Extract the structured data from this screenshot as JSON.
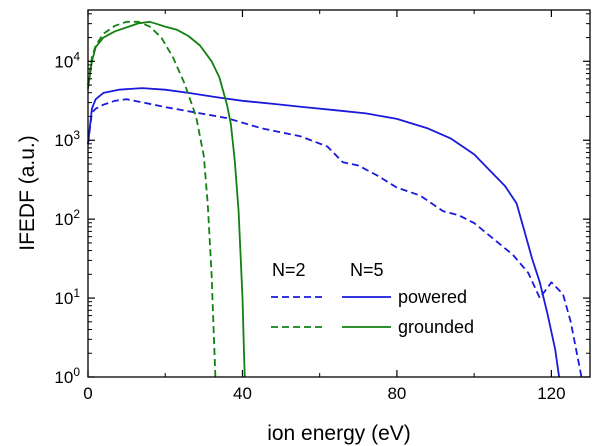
{
  "chart_data": {
    "type": "line",
    "xlabel": "ion energy (eV)",
    "ylabel": "IFEDF (a.u.)",
    "xlim": [
      0,
      130
    ],
    "ylim_exponents": [
      0,
      4.65
    ],
    "y_scale": "log",
    "grid": false,
    "x_ticks": [
      0,
      40,
      80,
      120
    ],
    "x_tick_labels": [
      "0",
      "40",
      "80",
      "120"
    ],
    "y_ticks": [
      {
        "exp": 0,
        "base": "10",
        "sup": "0"
      },
      {
        "exp": 1,
        "base": "10",
        "sup": "1"
      },
      {
        "exp": 2,
        "base": "10",
        "sup": "2"
      },
      {
        "exp": 3,
        "base": "10",
        "sup": "3"
      },
      {
        "exp": 4,
        "base": "10",
        "sup": "4"
      }
    ],
    "legend": {
      "position": "bottom-right",
      "col_headers": [
        "N=2",
        "N=5"
      ],
      "rows": [
        "powered",
        "grounded"
      ]
    },
    "colors": {
      "powered": "#1a1adc",
      "grounded": "#128012"
    },
    "series": [
      {
        "key": "powered-N2",
        "N": 2,
        "electrode": "powered",
        "style": "dashed",
        "points": [
          [
            0,
            2.95
          ],
          [
            1,
            3.35
          ],
          [
            2,
            3.4
          ],
          [
            4,
            3.45
          ],
          [
            7,
            3.5
          ],
          [
            10,
            3.52
          ],
          [
            14,
            3.48
          ],
          [
            20,
            3.42
          ],
          [
            28,
            3.35
          ],
          [
            36,
            3.28
          ],
          [
            45,
            3.15
          ],
          [
            55,
            3.05
          ],
          [
            62,
            2.92
          ],
          [
            66,
            2.72
          ],
          [
            70,
            2.68
          ],
          [
            75,
            2.55
          ],
          [
            80,
            2.4
          ],
          [
            86,
            2.3
          ],
          [
            92,
            2.1
          ],
          [
            96,
            2.05
          ],
          [
            100,
            1.95
          ],
          [
            105,
            1.75
          ],
          [
            110,
            1.55
          ],
          [
            114,
            1.32
          ],
          [
            117,
            1.0
          ],
          [
            120,
            1.2
          ],
          [
            123,
            1.05
          ],
          [
            125,
            0.7
          ],
          [
            127,
            0.2
          ],
          [
            127.8,
            0
          ]
        ]
      },
      {
        "key": "powered-N5",
        "N": 5,
        "electrode": "powered",
        "style": "solid",
        "points": [
          [
            0,
            2.95
          ],
          [
            1,
            3.4
          ],
          [
            2,
            3.52
          ],
          [
            4,
            3.6
          ],
          [
            8,
            3.64
          ],
          [
            14,
            3.66
          ],
          [
            20,
            3.64
          ],
          [
            26,
            3.6
          ],
          [
            34,
            3.54
          ],
          [
            40,
            3.5
          ],
          [
            48,
            3.46
          ],
          [
            56,
            3.42
          ],
          [
            64,
            3.38
          ],
          [
            72,
            3.34
          ],
          [
            80,
            3.27
          ],
          [
            88,
            3.15
          ],
          [
            94,
            3.02
          ],
          [
            100,
            2.82
          ],
          [
            104,
            2.62
          ],
          [
            108,
            2.42
          ],
          [
            111,
            2.2
          ],
          [
            113,
            1.85
          ],
          [
            115,
            1.5
          ],
          [
            117,
            1.2
          ],
          [
            119,
            0.8
          ],
          [
            121,
            0.35
          ],
          [
            122,
            0
          ]
        ]
      },
      {
        "key": "grounded-N2",
        "N": 2,
        "electrode": "grounded",
        "style": "dashed",
        "points": [
          [
            0,
            3.7
          ],
          [
            1,
            4.05
          ],
          [
            2,
            4.2
          ],
          [
            4,
            4.35
          ],
          [
            7,
            4.45
          ],
          [
            10,
            4.5
          ],
          [
            13,
            4.5
          ],
          [
            16,
            4.44
          ],
          [
            19,
            4.3
          ],
          [
            22,
            4.05
          ],
          [
            25,
            3.72
          ],
          [
            28,
            3.3
          ],
          [
            30,
            2.8
          ],
          [
            31,
            2.2
          ],
          [
            32,
            1.3
          ],
          [
            32.6,
            0.5
          ],
          [
            33,
            0
          ]
        ]
      },
      {
        "key": "grounded-N5",
        "N": 5,
        "electrode": "grounded",
        "style": "solid",
        "points": [
          [
            0,
            3.65
          ],
          [
            1,
            4.0
          ],
          [
            2,
            4.18
          ],
          [
            4,
            4.3
          ],
          [
            7,
            4.38
          ],
          [
            10,
            4.43
          ],
          [
            13,
            4.48
          ],
          [
            16,
            4.5
          ],
          [
            18,
            4.47
          ],
          [
            20,
            4.44
          ],
          [
            23,
            4.4
          ],
          [
            26,
            4.32
          ],
          [
            29,
            4.2
          ],
          [
            32,
            4.0
          ],
          [
            34,
            3.8
          ],
          [
            36,
            3.45
          ],
          [
            37,
            3.2
          ],
          [
            38,
            2.75
          ],
          [
            39,
            2.1
          ],
          [
            40,
            1.0
          ],
          [
            40.4,
            0.3
          ],
          [
            40.6,
            0
          ]
        ]
      }
    ]
  }
}
